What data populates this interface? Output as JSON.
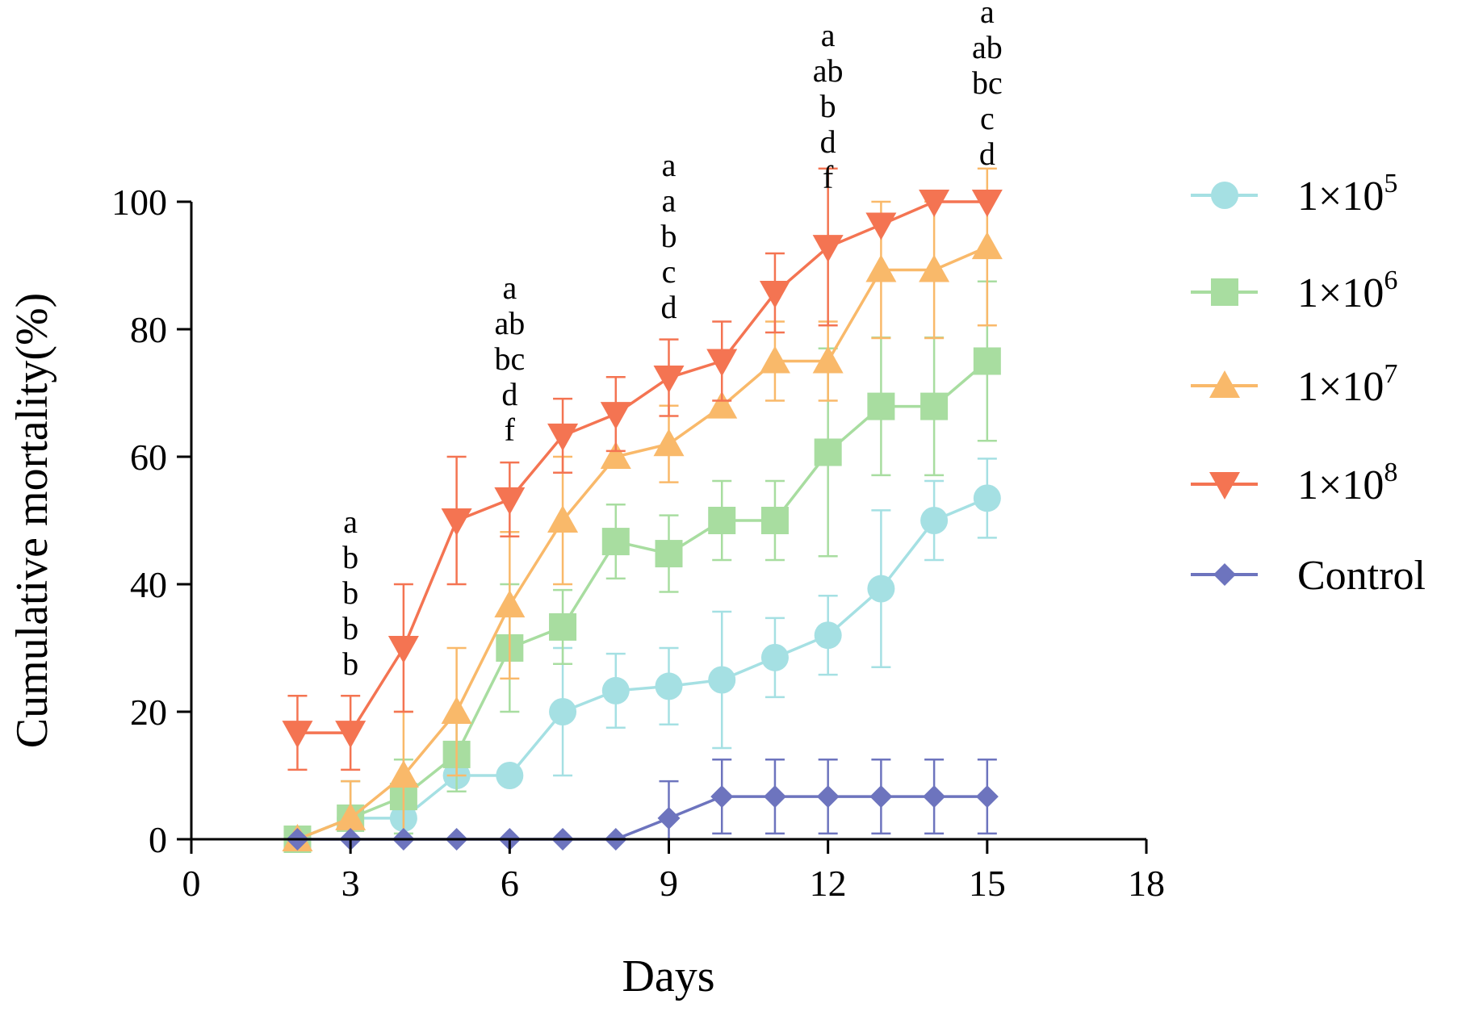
{
  "chart_data": {
    "type": "line",
    "title": "",
    "xlabel": "Days",
    "ylabel": "Cumulative mortality(%)",
    "xlim": [
      0,
      18
    ],
    "ylim": [
      0,
      100
    ],
    "xticks": [
      0,
      3,
      6,
      9,
      12,
      15,
      18
    ],
    "yticks": [
      0,
      20,
      40,
      60,
      80,
      100
    ],
    "grid": false,
    "legend_position": "right",
    "series": [
      {
        "name": "1×10⁵",
        "legend_base": "1×10",
        "legend_exp": "5",
        "color": "#A5E0E3",
        "marker": "circle",
        "x": [
          2,
          3,
          4,
          5,
          6,
          7,
          8,
          9,
          10,
          11,
          12,
          13,
          14,
          15
        ],
        "y": [
          0,
          3.3,
          3.3,
          10,
          10,
          20,
          23.3,
          24,
          25,
          28.5,
          32,
          39.3,
          50,
          53.5
        ],
        "err": [
          0,
          5.8,
          5.8,
          2.5,
          0,
          10,
          5.8,
          6,
          10.7,
          6.2,
          6.2,
          12.3,
          6.2,
          6.2
        ]
      },
      {
        "name": "1×10⁶",
        "legend_base": "1×10",
        "legend_exp": "6",
        "color": "#A8DDA0",
        "marker": "square",
        "x": [
          2,
          3,
          4,
          5,
          6,
          7,
          8,
          9,
          10,
          11,
          12,
          13,
          14,
          15
        ],
        "y": [
          0,
          3.3,
          6.7,
          13.3,
          30,
          33.3,
          46.7,
          44.8,
          50,
          50,
          60.7,
          67.9,
          67.9,
          75
        ],
        "err": [
          0,
          5.8,
          5.8,
          5.8,
          10,
          5.8,
          5.8,
          6,
          6.2,
          6.2,
          16.3,
          10.8,
          10.8,
          12.5
        ]
      },
      {
        "name": "1×10⁷",
        "legend_base": "1×10",
        "legend_exp": "7",
        "color": "#F9B96A",
        "marker": "triangle-up",
        "x": [
          2,
          3,
          4,
          5,
          6,
          7,
          8,
          9,
          10,
          11,
          12,
          13,
          14,
          15
        ],
        "y": [
          0,
          3.3,
          10,
          20,
          36.7,
          50,
          60,
          62,
          67.9,
          75,
          75,
          89.3,
          89.3,
          92.9
        ],
        "err": [
          0,
          5.8,
          10,
          10,
          11.5,
          10,
          0,
          6,
          0,
          6.2,
          6.2,
          10.7,
          10.7,
          12.3
        ]
      },
      {
        "name": "1×10⁸",
        "legend_base": "1×10",
        "legend_exp": "8",
        "color": "#F47452",
        "marker": "triangle-down",
        "x": [
          2,
          3,
          4,
          5,
          6,
          7,
          8,
          9,
          10,
          11,
          12,
          13,
          14,
          15
        ],
        "y": [
          16.7,
          16.7,
          30,
          50,
          53.3,
          63.3,
          66.7,
          72.4,
          75,
          85.7,
          92.9,
          96.4,
          100,
          100
        ],
        "err": [
          5.8,
          5.8,
          10,
          10,
          5.8,
          5.8,
          5.8,
          6,
          6.2,
          6.2,
          12.3,
          0,
          0,
          0
        ]
      },
      {
        "name": "Control",
        "legend_base": "Control",
        "legend_exp": "",
        "color": "#6D74BE",
        "marker": "diamond",
        "x": [
          2,
          3,
          4,
          5,
          6,
          7,
          8,
          9,
          10,
          11,
          12,
          13,
          14,
          15
        ],
        "y": [
          0,
          0,
          0,
          0,
          0,
          0,
          0,
          3.3,
          6.7,
          6.7,
          6.7,
          6.7,
          6.7,
          6.7
        ],
        "err": [
          0,
          0,
          0,
          0,
          0,
          0,
          0,
          5.8,
          5.8,
          5.8,
          5.8,
          5.8,
          5.8,
          5.8
        ]
      }
    ],
    "annotations": [
      {
        "x": 3,
        "letters": [
          "a",
          "b",
          "b",
          "b",
          "b"
        ]
      },
      {
        "x": 6,
        "letters": [
          "a",
          "ab",
          "bc",
          "d",
          "f"
        ]
      },
      {
        "x": 9,
        "letters": [
          "a",
          "a",
          "b",
          "c",
          "d"
        ]
      },
      {
        "x": 12,
        "letters": [
          "a",
          "ab",
          "b",
          "d",
          "f"
        ]
      },
      {
        "x": 15,
        "letters": [
          "a",
          "ab",
          "bc",
          "c",
          "d"
        ]
      }
    ]
  }
}
